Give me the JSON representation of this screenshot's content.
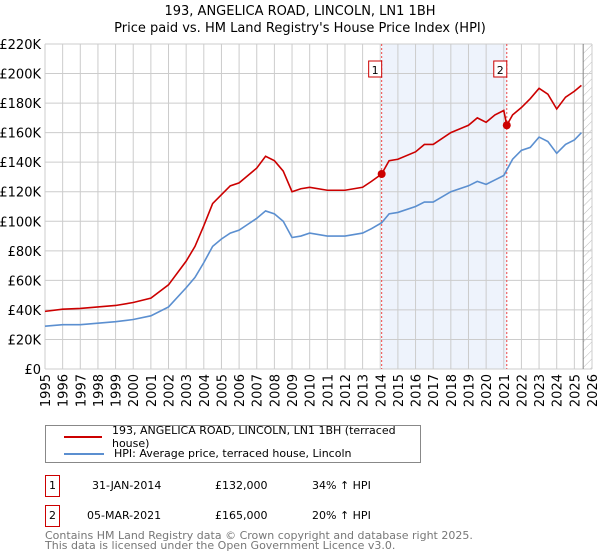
{
  "chart_data": {
    "type": "line",
    "title": "193, ANGELICA ROAD, LINCOLN, LN1 1BH",
    "subtitle": "Price paid vs. HM Land Registry's House Price Index (HPI)",
    "xlim": [
      1995,
      2026
    ],
    "ylim": [
      0,
      220000
    ],
    "yticks": [
      "£0",
      "£20K",
      "£40K",
      "£60K",
      "£80K",
      "£100K",
      "£120K",
      "£140K",
      "£160K",
      "£180K",
      "£200K",
      "£220K"
    ],
    "xticks": [
      "1995",
      "1996",
      "1997",
      "1998",
      "1999",
      "2000",
      "2001",
      "2002",
      "2003",
      "2004",
      "2005",
      "2006",
      "2007",
      "2008",
      "2009",
      "2010",
      "2011",
      "2012",
      "2013",
      "2014",
      "2015",
      "2016",
      "2017",
      "2018",
      "2019",
      "2020",
      "2021",
      "2022",
      "2023",
      "2024",
      "2025",
      "2026"
    ],
    "grid": true,
    "series": [
      {
        "name": "193, ANGELICA ROAD, LINCOLN, LN1 1BH (terraced house)",
        "color": "#cc0000",
        "x": [
          1995,
          1996,
          1997,
          1998,
          1999,
          2000,
          2001,
          2002,
          2003,
          2003.5,
          2004,
          2004.5,
          2005,
          2005.5,
          2006,
          2006.5,
          2007,
          2007.5,
          2008,
          2008.5,
          2009,
          2009.5,
          2010,
          2011,
          2012,
          2013,
          2013.5,
          2014.08,
          2014.5,
          2015,
          2016,
          2016.5,
          2017,
          2018,
          2019,
          2019.5,
          2020,
          2020.5,
          2021,
          2021.17,
          2021.5,
          2022,
          2022.5,
          2023,
          2023.5,
          2024,
          2024.5,
          2025,
          2025.4
        ],
        "y": [
          39000,
          40500,
          41000,
          42000,
          43000,
          45000,
          48000,
          57000,
          73000,
          83000,
          97000,
          112000,
          118000,
          124000,
          126000,
          131000,
          136000,
          144000,
          141000,
          134000,
          120000,
          122000,
          123000,
          121000,
          121000,
          123000,
          127000,
          132000,
          141000,
          142000,
          147000,
          152000,
          152000,
          160000,
          165000,
          170000,
          167000,
          172000,
          175000,
          165000,
          172000,
          177000,
          183000,
          190000,
          186000,
          176000,
          184000,
          188000,
          192000
        ]
      },
      {
        "name": "HPI: Average price, terraced house, Lincoln",
        "color": "#5b8fd0",
        "x": [
          1995,
          1996,
          1997,
          1998,
          1999,
          2000,
          2001,
          2002,
          2003,
          2003.5,
          2004,
          2004.5,
          2005,
          2005.5,
          2006,
          2006.5,
          2007,
          2007.5,
          2008,
          2008.5,
          2009,
          2009.5,
          2010,
          2011,
          2012,
          2013,
          2013.5,
          2014.08,
          2014.5,
          2015,
          2016,
          2016.5,
          2017,
          2018,
          2019,
          2019.5,
          2020,
          2020.5,
          2021,
          2021.5,
          2022,
          2022.5,
          2023,
          2023.5,
          2024,
          2024.5,
          2025,
          2025.4
        ],
        "y": [
          29000,
          30000,
          30000,
          31000,
          32000,
          33500,
          36000,
          42000,
          55000,
          62000,
          72000,
          83000,
          88000,
          92000,
          94000,
          98000,
          102000,
          107000,
          105000,
          100000,
          89000,
          90000,
          92000,
          90000,
          90000,
          92000,
          95000,
          99000,
          105000,
          106000,
          110000,
          113000,
          113000,
          120000,
          124000,
          127000,
          125000,
          128000,
          131000,
          142000,
          148000,
          150000,
          157000,
          154000,
          146000,
          152000,
          155000,
          160000
        ]
      }
    ],
    "annotations": [
      {
        "label": "1",
        "date": "31-JAN-2014",
        "x": 2014.08,
        "price": "£132,000",
        "value": 132000,
        "hpi": "34% ↑ HPI"
      },
      {
        "label": "2",
        "date": "05-MAR-2021",
        "x": 2021.17,
        "price": "£165,000",
        "value": 165000,
        "hpi": "20% ↑ HPI"
      }
    ],
    "shaded_range": [
      2014.08,
      2021.17
    ],
    "forecast_hatch_from": 2025.5,
    "legend_placement": "bottom"
  },
  "footer": {
    "line1": "Contains HM Land Registry data © Crown copyright and database right 2025.",
    "line2": "This data is licensed under the Open Government Licence v3.0."
  }
}
